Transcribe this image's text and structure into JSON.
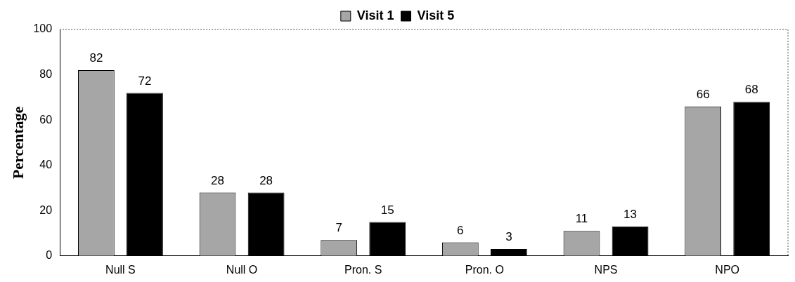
{
  "chart_data": {
    "type": "bar",
    "ylabel": "Percentage",
    "categories": [
      "Null S",
      "Null O",
      "Pron. S",
      "Pron. O",
      "NPS",
      "NPO"
    ],
    "series": [
      {
        "name": "Visit 1",
        "color": "#a6a6a6",
        "values": [
          82,
          28,
          7,
          6,
          11,
          66
        ]
      },
      {
        "name": "Visit 5",
        "color": "#000000",
        "values": [
          72,
          28,
          15,
          3,
          13,
          68
        ]
      }
    ],
    "ylim": [
      0,
      100
    ],
    "yticks": [
      0,
      20,
      40,
      60,
      80,
      100
    ],
    "grid": false,
    "legend": "top",
    "data_labels": true
  }
}
